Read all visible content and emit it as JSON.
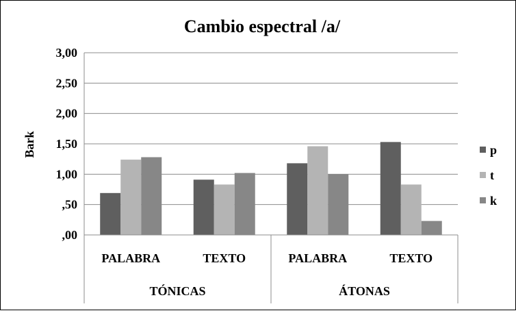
{
  "chart_data": {
    "type": "bar",
    "title": "Cambio espectral /a/",
    "ylabel": "Bark",
    "xlabel": "",
    "ylim": [
      0,
      3
    ],
    "yticks": [
      0,
      0.5,
      1,
      1.5,
      2,
      2.5,
      3
    ],
    "ytick_labels": [
      ",00",
      ",50",
      "1,00",
      "1,50",
      "2,00",
      "2,50",
      "3,00"
    ],
    "groups": [
      {
        "label": "TÓNICAS",
        "categories": [
          "PALABRA",
          "TEXTO"
        ]
      },
      {
        "label": "ÁTONAS",
        "categories": [
          "PALABRA",
          "TEXTO"
        ]
      }
    ],
    "categories": [
      "PALABRA",
      "TEXTO",
      "PALABRA",
      "TEXTO"
    ],
    "series": [
      {
        "name": "p",
        "color": "#5f5f5f",
        "values": [
          0.69,
          0.91,
          1.18,
          1.53
        ]
      },
      {
        "name": "t",
        "color": "#b4b4b4",
        "values": [
          1.24,
          0.83,
          1.46,
          0.83
        ]
      },
      {
        "name": "k",
        "color": "#878787",
        "values": [
          1.28,
          1.02,
          1.0,
          0.23
        ]
      }
    ],
    "grid": true,
    "legend_position": "right"
  }
}
